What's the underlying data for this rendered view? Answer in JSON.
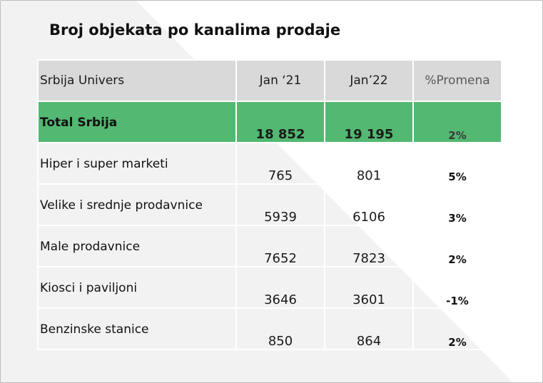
{
  "title": "Broj objekata po kanalima prodaje",
  "table": {
    "headers": [
      "Srbija Univers",
      "Jan ‘21",
      "Jan’22",
      "%Promena"
    ],
    "total": {
      "label": "Total Srbija",
      "jan21": "18 852",
      "jan22": "19 195",
      "change": "2%"
    },
    "rows": [
      {
        "label": "Hiper i super marketi",
        "jan21": "765",
        "jan22": "801",
        "change": "5%"
      },
      {
        "label": "Velike i srednje prodavnice",
        "jan21": "5939",
        "jan22": "6106",
        "change": "3%"
      },
      {
        "label": "Male prodavnice",
        "jan21": "7652",
        "jan22": "7823",
        "change": "2%"
      },
      {
        "label": "Kiosci i paviljoni",
        "jan21": "3646",
        "jan22": "3601",
        "change": "-1%"
      },
      {
        "label": "Benzinske stanice",
        "jan21": "850",
        "jan22": "864",
        "change": "2%"
      }
    ]
  },
  "colors": {
    "header_bg": "#d9d9d9",
    "total_bg": "#53b872",
    "row_bg": "#f2f2f2",
    "background_shape": "#f2f2f2"
  }
}
